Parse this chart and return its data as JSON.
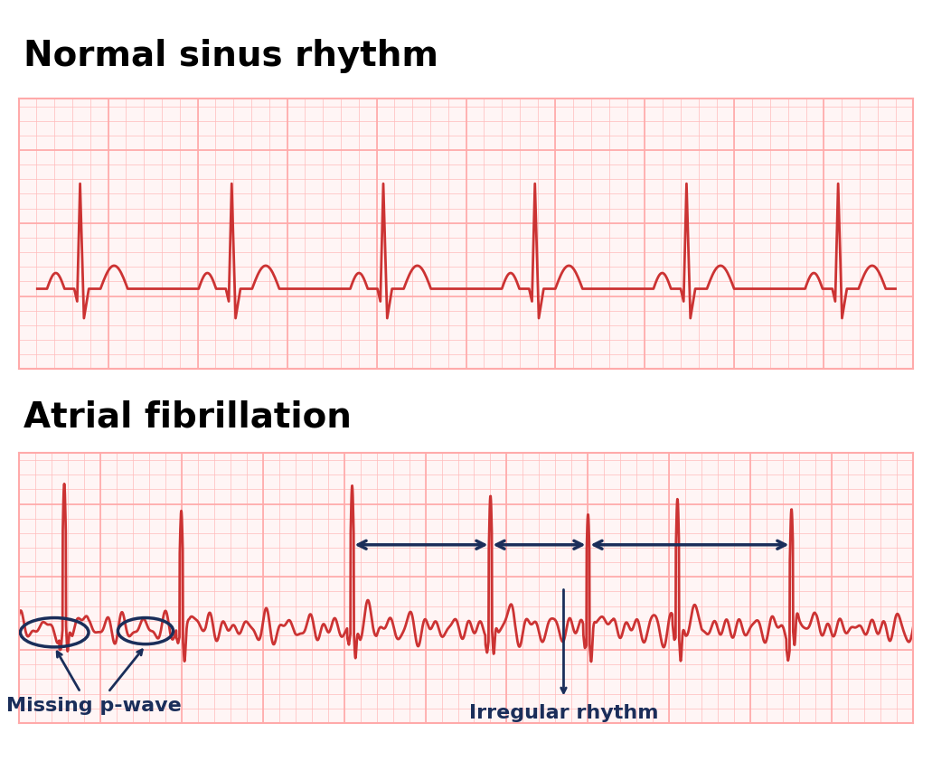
{
  "title_normal": "Normal sinus rhythm",
  "title_af": "Atrial fibrillation",
  "title_fontsize": 28,
  "title_fontweight": "bold",
  "ecg_color": "#cc3333",
  "ecg_linewidth": 2.0,
  "grid_color_minor": "#ffbbbb",
  "grid_color_major": "#ffaaaa",
  "grid_bg": "#fff5f5",
  "annotation_color": "#1a2e5a",
  "annotation_fontsize": 16,
  "annotation_fontweight": "bold",
  "fig_bg": "#ffffff",
  "label_missing_pwave": "Missing p-wave",
  "label_irregular_rhythm": "Irregular rhythm"
}
